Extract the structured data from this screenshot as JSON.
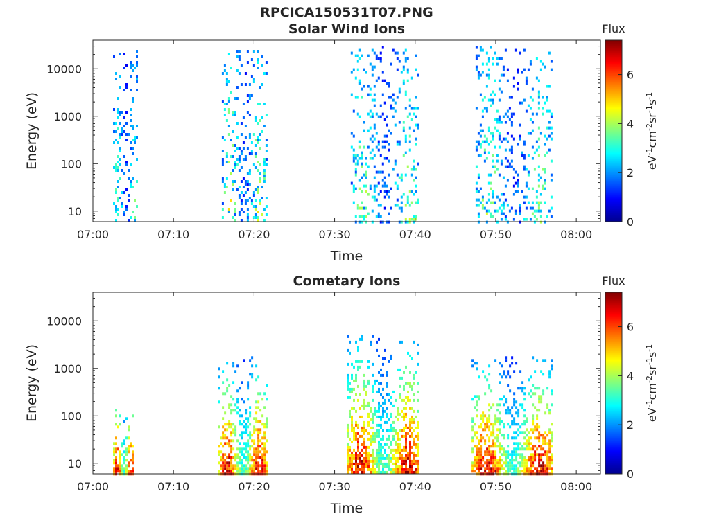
{
  "figure_title": "RPCICA150531T07.PNG",
  "colorbar": {
    "label": "Flux",
    "ticks": [
      "0",
      "2",
      "4",
      "6"
    ],
    "min": 0,
    "max": 7.4,
    "colormap": "jet"
  },
  "chart_data": [
    {
      "type": "heatmap",
      "title": "Solar Wind Ions",
      "xlabel": "Time",
      "ylabel": "Energy (eV)",
      "xticks": [
        "07:00",
        "07:10",
        "07:20",
        "07:30",
        "07:40",
        "07:50",
        "08:00"
      ],
      "xlim_minutes": [
        0,
        63
      ],
      "yticks": [
        "10",
        "100",
        "1000",
        "10000"
      ],
      "ylim": [
        6,
        40000
      ],
      "yscale": "log",
      "bursts": [
        {
          "t_start": 2.5,
          "t_end": 5.5,
          "e_low": 6,
          "e_high": 25000,
          "flux_low": 1.5,
          "flux_high": 3.5
        },
        {
          "t_start": 16,
          "t_end": 21.5,
          "e_low": 6,
          "e_high": 25000,
          "flux_low": 1.5,
          "flux_high": 4.5
        },
        {
          "t_start": 32,
          "t_end": 40.5,
          "e_low": 6,
          "e_high": 30000,
          "flux_low": 1.5,
          "flux_high": 4.0
        },
        {
          "t_start": 47.5,
          "t_end": 57,
          "e_low": 6,
          "e_high": 30000,
          "flux_low": 1.5,
          "flux_high": 4.0
        }
      ]
    },
    {
      "type": "heatmap",
      "title": "Cometary Ions",
      "xlabel": "Time",
      "ylabel": "Energy (eV)",
      "xticks": [
        "07:00",
        "07:10",
        "07:20",
        "07:30",
        "07:40",
        "07:50",
        "08:00"
      ],
      "xlim_minutes": [
        0,
        63
      ],
      "yticks": [
        "10",
        "100",
        "1000",
        "10000"
      ],
      "ylim": [
        6,
        40000
      ],
      "yscale": "log",
      "bursts": [
        {
          "t_start": 2.5,
          "t_end": 5,
          "e_low": 6,
          "e_high": 160,
          "flux_low": 3,
          "flux_high": 7
        },
        {
          "t_start": 15.5,
          "t_end": 21.5,
          "e_low": 6,
          "e_high": 1800,
          "flux_low": 2,
          "flux_high": 7
        },
        {
          "t_start": 31.5,
          "t_end": 40.5,
          "e_low": 6,
          "e_high": 5000,
          "flux_low": 2,
          "flux_high": 7
        },
        {
          "t_start": 47,
          "t_end": 57,
          "e_low": 6,
          "e_high": 1800,
          "flux_low": 2,
          "flux_high": 7
        }
      ]
    }
  ]
}
